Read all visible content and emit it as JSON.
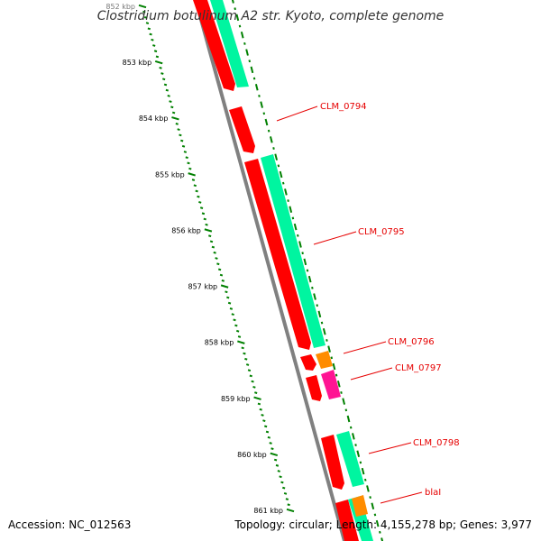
{
  "title": "Clostridium botulinum A2 str. Kyoto, complete genome",
  "footer": {
    "accession": "Accession: NC_012563",
    "topology": "Topology: circular; Length: 4,155,278 bp; Genes: 3,977"
  },
  "colors": {
    "backbone": "#808080",
    "cds": "#ff0000",
    "gene": "#00f5a0",
    "rna": "#ff8c00",
    "misc": "#ff1493",
    "ruler": "#008000",
    "label": "#e60000"
  },
  "ruler_labels": [
    "852 kbp",
    "853 kbp",
    "854 kbp",
    "855 kbp",
    "856 kbp",
    "857 kbp",
    "858 kbp",
    "859 kbp",
    "860 kbp",
    "861 kbp"
  ],
  "gene_labels": [
    {
      "name": "CLM_0794"
    },
    {
      "name": "CLM_0795"
    },
    {
      "name": "CLM_0796"
    },
    {
      "name": "CLM_0797"
    },
    {
      "name": "CLM_0798"
    },
    {
      "name": "blaI"
    }
  ]
}
